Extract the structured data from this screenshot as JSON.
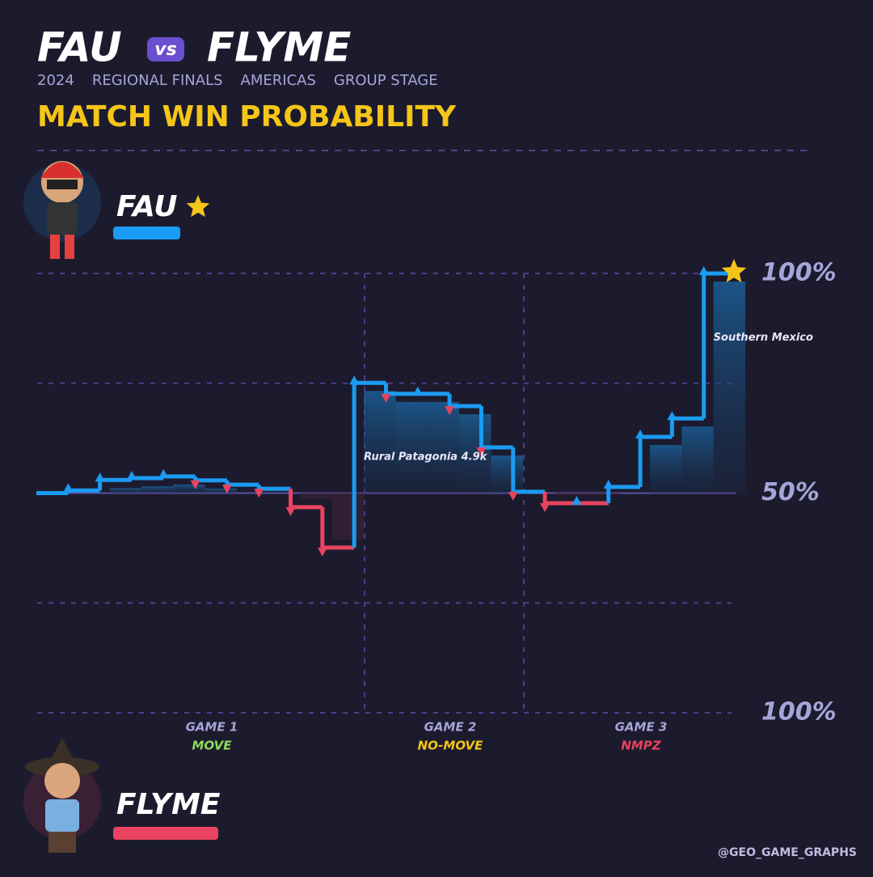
{
  "header": {
    "left": "FAU",
    "vs": "vs",
    "right": "FLYME",
    "subtitle": [
      "2024",
      "REGIONAL FINALS",
      "AMERICAS",
      "GROUP STAGE"
    ],
    "title": "MATCH WIN PROBABILITY"
  },
  "players": [
    {
      "name": "FAU",
      "color": "#1a9cf2",
      "winner": true
    },
    {
      "name": "FLYME",
      "color": "#e8435f",
      "winner": false
    }
  ],
  "chart_data": {
    "type": "step",
    "values": [
      50,
      50.6,
      53,
      53.4,
      53.8,
      52.9,
      51.9,
      51,
      46.8,
      37.6,
      75.1,
      72.6,
      72.6,
      69.8,
      60.4,
      50.3,
      47.7,
      47.7,
      51.4,
      62.8,
      67,
      100
    ],
    "annotations": [
      null,
      null,
      null,
      null,
      null,
      null,
      null,
      null,
      null,
      null,
      "Rural Patagonia 4.9k",
      null,
      null,
      null,
      null,
      null,
      null,
      null,
      null,
      null,
      null,
      "Southern Mexico"
    ],
    "ylim": [
      0,
      100
    ],
    "yticks": [
      {
        "value": 100,
        "label": "100%"
      },
      {
        "value": 50,
        "label": "50%"
      },
      {
        "value": 0,
        "label": "100%"
      }
    ],
    "ygrid": [
      0,
      25,
      50,
      75,
      100
    ],
    "midline": 50,
    "games": [
      {
        "name": "GAME 1",
        "mode": "MOVE",
        "color": "#8fdc5a"
      },
      {
        "name": "GAME 2",
        "mode": "NO-MOVE",
        "color": "#f5c518"
      },
      {
        "name": "GAME 3",
        "mode": "NMPZ",
        "color": "#e8435f"
      }
    ]
  },
  "credit": "@GEO_GAME_GRAPHS"
}
